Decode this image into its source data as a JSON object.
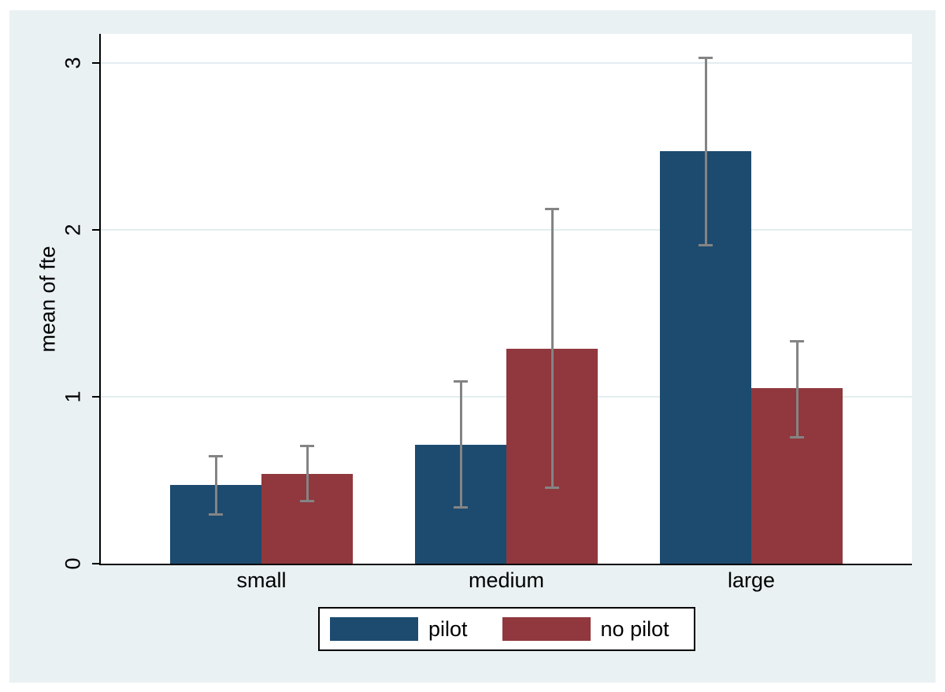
{
  "figure": {
    "background_color": "#eaf1f3",
    "plot_background": "#ffffff",
    "gridline_color": "#e3edf0",
    "axis_color": "#000000",
    "errorbar_color": "#848484",
    "legend_border_color": "#000000",
    "legend_background": "#ffffff"
  },
  "chart_data": {
    "type": "bar",
    "title": "",
    "xlabel": "",
    "ylabel": "mean of fte",
    "categories": [
      "small",
      "medium",
      "large"
    ],
    "series": [
      {
        "name": "pilot",
        "color": "#1d4b6f",
        "values": [
          0.47,
          0.71,
          2.47
        ],
        "ci_low": [
          0.29,
          0.33,
          1.9
        ],
        "ci_high": [
          0.65,
          1.1,
          3.04
        ]
      },
      {
        "name": "no pilot",
        "color": "#90383d",
        "values": [
          0.54,
          1.29,
          1.05
        ],
        "ci_low": [
          0.37,
          0.45,
          0.75
        ],
        "ci_high": [
          0.71,
          2.13,
          1.34
        ]
      }
    ],
    "yticks": [
      0,
      1,
      2,
      3
    ],
    "ylim": [
      0,
      3.17
    ],
    "grid": true,
    "error_bars": true,
    "legend_position": "bottom"
  }
}
